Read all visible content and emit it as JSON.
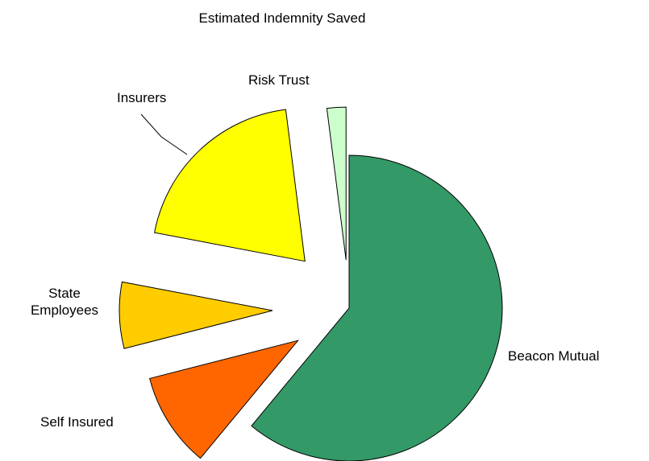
{
  "chart_data": {
    "type": "pie",
    "title": "Estimated Indemnity Saved",
    "categories": [
      "Beacon Mutual",
      "Self Insured",
      "State Employees",
      "Insurers",
      "Risk Trust"
    ],
    "values": [
      61,
      10,
      7,
      20,
      2
    ],
    "colors": [
      "#339966",
      "#ff6600",
      "#ffcc00",
      "#ffff00",
      "#ccffcc"
    ]
  }
}
